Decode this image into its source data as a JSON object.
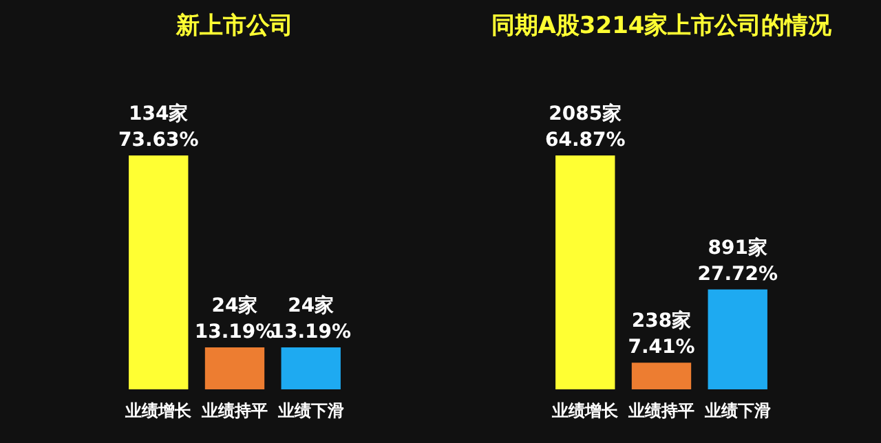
{
  "chart_data": [
    {
      "type": "bar",
      "title": "新上市公司",
      "categories": [
        "业绩增长",
        "业绩持平",
        "业绩下滑"
      ],
      "values": [
        134,
        24,
        24
      ],
      "colors": [
        "#ffff33",
        "#ed7d31",
        "#1eaaf1"
      ],
      "value_labels": [
        "134家\n73.63%",
        "24家\n13.19%",
        "24家\n13.19%"
      ],
      "tick_labels": "x",
      "grid": false
    },
    {
      "type": "bar",
      "title": "同期A股3214家上市公司的情况",
      "categories": [
        "业绩增长",
        "业绩持平",
        "业绩下滑"
      ],
      "values": [
        2085,
        238,
        891
      ],
      "colors": [
        "#ffff33",
        "#ed7d31",
        "#1eaaf1"
      ],
      "value_labels": [
        "2085家\n64.87%",
        "238家\n7.41%",
        "891家\n27.72%"
      ],
      "tick_labels": "x",
      "grid": false
    }
  ]
}
